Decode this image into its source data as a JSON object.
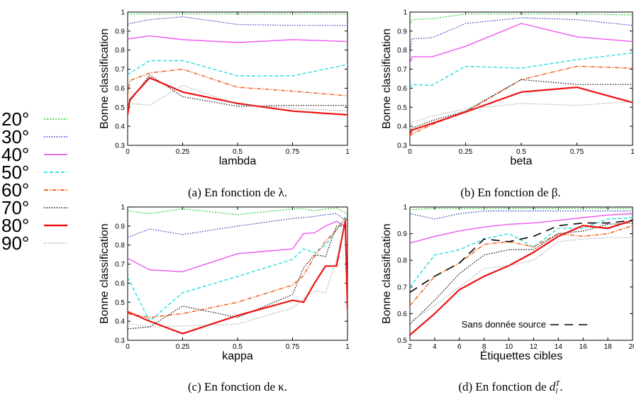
{
  "legend": [
    {
      "name": "20°",
      "color": "#22cc22",
      "dash": "2,2",
      "width": 1.2
    },
    {
      "name": "30°",
      "color": "#2233bb",
      "dash": "1.5,2",
      "width": 1.2
    },
    {
      "name": "40°",
      "color": "#ee55ee",
      "dash": "",
      "width": 1.4
    },
    {
      "name": "50°",
      "color": "#22dddd",
      "dash": "5,3",
      "width": 1.4
    },
    {
      "name": "60°",
      "color": "#ee5511",
      "dash": "6,2,1.5,2",
      "width": 1.4
    },
    {
      "name": "70°",
      "color": "#111111",
      "dash": "1.5,2",
      "width": 1.3
    },
    {
      "name": "80°",
      "color": "#ee1111",
      "dash": "",
      "width": 2.2
    },
    {
      "name": "90°",
      "color": "#888888",
      "dash": "1,2",
      "width": 1.2
    }
  ],
  "chart_data": [
    {
      "type": "line",
      "caption": "(a) En fonction de λ.",
      "xlabel": "lambda",
      "ylabel": "Bonne classification",
      "xlim": [
        0,
        1
      ],
      "ylim": [
        0.3,
        1
      ],
      "xticks": [
        0,
        0.25,
        0.5,
        0.75,
        1
      ],
      "xticklabels": [
        "0",
        "0.25",
        "0.5",
        "0.75",
        "1"
      ],
      "yticks": [
        0.3,
        0.4,
        0.5,
        0.6,
        0.7,
        0.8,
        0.9,
        1
      ],
      "yticklabels": [
        "0.3",
        "0.4",
        "0.5",
        "0.6",
        "0.7",
        "0.8",
        "0.9",
        "1"
      ],
      "x": [
        0,
        0.01,
        0.1,
        0.25,
        0.5,
        0.75,
        1
      ],
      "series": [
        {
          "name": "20°",
          "values": [
            0.99,
            0.99,
            0.99,
            0.99,
            0.99,
            0.99,
            0.99
          ]
        },
        {
          "name": "30°",
          "values": [
            0.93,
            0.94,
            0.96,
            0.975,
            0.935,
            0.93,
            0.93
          ]
        },
        {
          "name": "40°",
          "values": [
            0.86,
            0.86,
            0.875,
            0.855,
            0.84,
            0.855,
            0.845
          ]
        },
        {
          "name": "50°",
          "values": [
            0.67,
            0.68,
            0.745,
            0.745,
            0.665,
            0.665,
            0.725
          ]
        },
        {
          "name": "60°",
          "values": [
            0.56,
            0.64,
            0.68,
            0.7,
            0.605,
            0.585,
            0.56
          ]
        },
        {
          "name": "70°",
          "values": [
            0.51,
            0.53,
            0.67,
            0.555,
            0.505,
            0.51,
            0.51
          ]
        },
        {
          "name": "80°",
          "values": [
            0.46,
            0.54,
            0.655,
            0.58,
            0.52,
            0.48,
            0.46
          ]
        },
        {
          "name": "90°",
          "values": [
            0.5,
            0.52,
            0.51,
            0.615,
            0.515,
            0.495,
            0.48
          ]
        }
      ]
    },
    {
      "type": "line",
      "caption": "(b) En fonction de β.",
      "xlabel": "beta",
      "ylabel": "Bonne classification",
      "xlim": [
        0,
        1
      ],
      "ylim": [
        0.3,
        1
      ],
      "xticks": [
        0,
        0.25,
        0.5,
        0.75,
        1
      ],
      "xticklabels": [
        "0",
        "0.25",
        "0.5",
        "0.75",
        "1"
      ],
      "yticks": [
        0.3,
        0.4,
        0.5,
        0.6,
        0.7,
        0.8,
        0.9,
        1
      ],
      "yticklabels": [
        "0.3",
        "0.4",
        "0.5",
        "0.6",
        "0.7",
        "0.8",
        "0.9",
        "1"
      ],
      "x": [
        0,
        0.01,
        0.1,
        0.25,
        0.5,
        0.75,
        1
      ],
      "series": [
        {
          "name": "20°",
          "values": [
            0.93,
            0.96,
            0.965,
            0.99,
            0.99,
            0.99,
            0.985
          ]
        },
        {
          "name": "30°",
          "values": [
            0.79,
            0.86,
            0.865,
            0.94,
            0.97,
            0.96,
            0.93
          ]
        },
        {
          "name": "40°",
          "values": [
            0.73,
            0.765,
            0.765,
            0.82,
            0.94,
            0.87,
            0.845
          ]
        },
        {
          "name": "50°",
          "values": [
            0.6,
            0.62,
            0.615,
            0.715,
            0.705,
            0.75,
            0.785
          ]
        },
        {
          "name": "60°",
          "values": [
            0.35,
            0.36,
            0.41,
            0.475,
            0.645,
            0.715,
            0.705
          ]
        },
        {
          "name": "70°",
          "values": [
            0.37,
            0.39,
            0.43,
            0.48,
            0.645,
            0.62,
            0.62
          ]
        },
        {
          "name": "80°",
          "values": [
            0.36,
            0.38,
            0.415,
            0.475,
            0.58,
            0.605,
            0.525
          ]
        },
        {
          "name": "90°",
          "values": [
            0.4,
            0.42,
            0.455,
            0.49,
            0.52,
            0.51,
            0.53
          ]
        }
      ]
    },
    {
      "type": "line",
      "caption": "(c) En fonction de κ.",
      "xlabel": "kappa",
      "ylabel": "Bonne classification",
      "xlim": [
        0,
        1
      ],
      "ylim": [
        0.3,
        1
      ],
      "xticks": [
        0,
        0.25,
        0.5,
        0.75,
        1
      ],
      "xticklabels": [
        "0",
        "0.25",
        "0.5",
        "0.75",
        "1"
      ],
      "yticks": [
        0.3,
        0.4,
        0.5,
        0.6,
        0.7,
        0.8,
        0.9,
        1
      ],
      "yticklabels": [
        "0.3",
        "0.4",
        "0.5",
        "0.6",
        "0.7",
        "0.8",
        "0.9",
        "1"
      ],
      "x": [
        0,
        0.1,
        0.25,
        0.5,
        0.75,
        0.8,
        0.85,
        0.9,
        0.95,
        0.99,
        1
      ],
      "series": [
        {
          "name": "20°",
          "values": [
            0.98,
            0.965,
            0.99,
            0.96,
            0.99,
            0.99,
            0.98,
            0.99,
            0.995,
            0.97,
            0.96
          ]
        },
        {
          "name": "30°",
          "values": [
            0.84,
            0.885,
            0.855,
            0.9,
            0.94,
            0.945,
            0.95,
            0.96,
            0.965,
            0.93,
            0.92
          ]
        },
        {
          "name": "40°",
          "values": [
            0.73,
            0.67,
            0.66,
            0.755,
            0.78,
            0.86,
            0.865,
            0.9,
            0.925,
            0.9,
            0.9
          ]
        },
        {
          "name": "50°",
          "values": [
            0.63,
            0.4,
            0.55,
            0.635,
            0.725,
            0.78,
            0.76,
            0.8,
            0.88,
            0.95,
            0.92
          ]
        },
        {
          "name": "60°",
          "values": [
            0.44,
            0.42,
            0.44,
            0.5,
            0.59,
            0.64,
            0.74,
            0.82,
            0.88,
            0.94,
            0.93
          ]
        },
        {
          "name": "70°",
          "values": [
            0.36,
            0.37,
            0.48,
            0.42,
            0.54,
            0.68,
            0.75,
            0.74,
            0.9,
            0.9,
            0.9
          ]
        },
        {
          "name": "80°",
          "values": [
            0.45,
            0.4,
            0.335,
            0.43,
            0.51,
            0.5,
            0.6,
            0.69,
            0.69,
            0.93,
            0.46
          ]
        },
        {
          "name": "90°",
          "values": [
            0.39,
            0.37,
            0.375,
            0.385,
            0.47,
            0.52,
            0.56,
            0.55,
            0.72,
            0.93,
            0.93
          ]
        }
      ]
    },
    {
      "type": "line",
      "caption": "(d) En fonction de d_l^T.",
      "xlabel": "Étiquettes cibles",
      "ylabel": "Bonne classification",
      "xlim": [
        2,
        20
      ],
      "ylim": [
        0.5,
        1
      ],
      "xticks": [
        2,
        4,
        6,
        8,
        10,
        12,
        14,
        16,
        18,
        20
      ],
      "xticklabels": [
        "2",
        "4",
        "6",
        "8",
        "10",
        "12",
        "14",
        "16",
        "18",
        "20"
      ],
      "yticks": [
        0.5,
        0.6,
        0.7,
        0.8,
        0.9,
        1
      ],
      "yticklabels": [
        "0.5",
        "0.6",
        "0.7",
        "0.8",
        "0.9",
        "1"
      ],
      "x": [
        2,
        4,
        6,
        8,
        10,
        12,
        14,
        16,
        18,
        20
      ],
      "series": [
        {
          "name": "20°",
          "values": [
            0.99,
            0.995,
            0.995,
            0.995,
            0.995,
            0.995,
            0.995,
            0.995,
            0.995,
            0.995
          ]
        },
        {
          "name": "30°",
          "values": [
            0.975,
            0.955,
            0.975,
            0.985,
            0.985,
            0.985,
            0.985,
            0.985,
            0.985,
            0.985
          ]
        },
        {
          "name": "40°",
          "values": [
            0.865,
            0.89,
            0.91,
            0.925,
            0.935,
            0.94,
            0.95,
            0.96,
            0.97,
            0.975
          ]
        },
        {
          "name": "50°",
          "values": [
            0.7,
            0.82,
            0.84,
            0.88,
            0.9,
            0.85,
            0.92,
            0.92,
            0.955,
            0.96
          ]
        },
        {
          "name": "60°",
          "values": [
            0.63,
            0.74,
            0.79,
            0.86,
            0.87,
            0.85,
            0.9,
            0.89,
            0.9,
            0.93
          ]
        },
        {
          "name": "70°",
          "values": [
            0.56,
            0.65,
            0.75,
            0.82,
            0.84,
            0.84,
            0.9,
            0.91,
            0.935,
            0.94
          ]
        },
        {
          "name": "80°",
          "values": [
            0.52,
            0.6,
            0.69,
            0.74,
            0.78,
            0.83,
            0.89,
            0.93,
            0.92,
            0.95
          ]
        },
        {
          "name": "90°",
          "values": [
            0.57,
            0.63,
            0.7,
            0.77,
            0.78,
            0.8,
            0.87,
            0.88,
            0.885,
            0.885
          ]
        },
        {
          "name": "Sans donnée source",
          "values": [
            0.68,
            0.74,
            0.79,
            0.88,
            0.87,
            0.89,
            0.93,
            0.94,
            0.94,
            0.95
          ]
        }
      ],
      "annotation": "Sans donnée source"
    }
  ]
}
